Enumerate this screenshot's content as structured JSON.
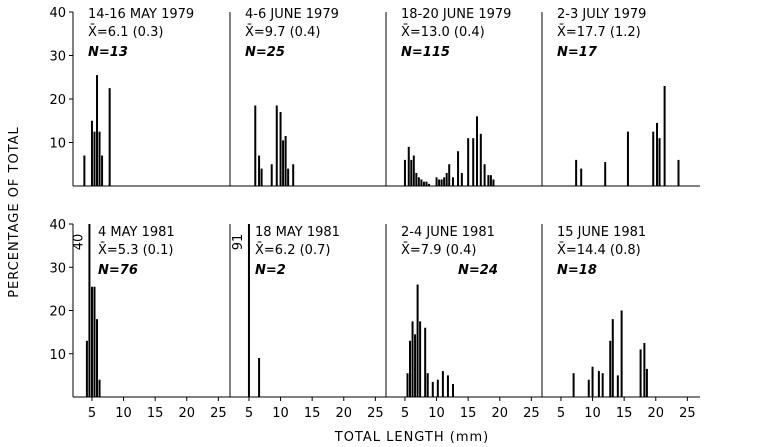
{
  "figure": {
    "ylabel": "PERCENTAGE OF TOTAL",
    "xlabel": "TOTAL LENGTH (mm)"
  },
  "chart_data": [
    {
      "type": "bar",
      "row": 0,
      "col": 0,
      "title": "14-16 MAY 1979",
      "mean_label": "X̄=6.1 (0.3)",
      "n_label": "N=13",
      "ylim": [
        0,
        40
      ],
      "xlim": [
        2,
        27
      ],
      "yticks": [
        10,
        20,
        30,
        40
      ],
      "xticks": [],
      "x": [
        3.8,
        5.0,
        5.4,
        5.8,
        6.2,
        6.6,
        7.8
      ],
      "y": [
        7,
        15,
        12.5,
        25.5,
        12.5,
        7,
        22.5
      ],
      "overflow_label": ""
    },
    {
      "type": "bar",
      "row": 0,
      "col": 1,
      "title": "4-6 JUNE 1979",
      "mean_label": "X̄=9.7 (0.4)",
      "n_label": "N=25",
      "ylim": [
        0,
        40
      ],
      "xlim": [
        2,
        27
      ],
      "yticks": [],
      "xticks": [],
      "x": [
        6.0,
        6.6,
        7.0,
        8.6,
        9.4,
        10.0,
        10.4,
        10.8,
        11.2,
        12.0
      ],
      "y": [
        18.5,
        7,
        4,
        5,
        18.5,
        17,
        10.5,
        11.5,
        4,
        5
      ],
      "overflow_label": ""
    },
    {
      "type": "bar",
      "row": 0,
      "col": 2,
      "title": "18-20 JUNE 1979",
      "mean_label": "X̄=13.0 (0.4)",
      "n_label": "N=115",
      "ylim": [
        0,
        40
      ],
      "xlim": [
        2,
        27
      ],
      "yticks": [],
      "xticks": [],
      "x": [
        5.0,
        5.6,
        6.0,
        6.4,
        6.8,
        7.2,
        7.6,
        8.0,
        8.4,
        8.8,
        10.0,
        10.4,
        10.8,
        11.2,
        11.6,
        12.0,
        12.6,
        13.4,
        14.0,
        15.0,
        15.8,
        16.4,
        17.0,
        17.6,
        18.2,
        18.6,
        19.0
      ],
      "y": [
        6,
        9,
        6,
        7,
        3,
        2,
        1.5,
        1,
        1,
        0.5,
        2,
        1.5,
        1.5,
        2,
        3,
        5,
        2,
        8,
        3,
        11,
        11,
        16,
        12,
        5,
        2.5,
        2.5,
        1.5
      ],
      "overflow_label": ""
    },
    {
      "type": "bar",
      "row": 0,
      "col": 3,
      "title": "2-3 JULY 1979",
      "mean_label": "X̄=17.7 (1.2)",
      "n_label": "N=17",
      "ylim": [
        0,
        40
      ],
      "xlim": [
        2,
        27
      ],
      "yticks": [],
      "xticks": [],
      "x": [
        7.4,
        8.2,
        12.0,
        15.6,
        19.6,
        20.2,
        20.6,
        21.4,
        23.6
      ],
      "y": [
        6,
        4,
        5.5,
        12.5,
        12.5,
        14.5,
        11,
        23,
        6
      ],
      "overflow_label": ""
    },
    {
      "type": "bar",
      "row": 1,
      "col": 0,
      "title": "4 MAY 1981",
      "mean_label": "X̄=5.3 (0.1)",
      "n_label": "N=76",
      "ylim": [
        0,
        40
      ],
      "xlim": [
        2,
        27
      ],
      "yticks": [
        10,
        20,
        30,
        40
      ],
      "xticks": [
        5,
        10,
        15,
        20,
        25
      ],
      "x": [
        4.2,
        4.6,
        5.0,
        5.4,
        5.8,
        6.2
      ],
      "y": [
        13,
        40,
        25.5,
        25.5,
        18,
        4
      ],
      "overflow_label": "40"
    },
    {
      "type": "bar",
      "row": 1,
      "col": 1,
      "title": "18 MAY 1981",
      "mean_label": "X̄=6.2 (0.7)",
      "n_label": "N=2",
      "ylim": [
        0,
        40
      ],
      "xlim": [
        2,
        27
      ],
      "yticks": [],
      "xticks": [
        5,
        10,
        15,
        20,
        25
      ],
      "x": [
        5.0,
        6.6
      ],
      "y": [
        40,
        9
      ],
      "overflow_label": "91"
    },
    {
      "type": "bar",
      "row": 1,
      "col": 2,
      "title": "2-4 JUNE 1981",
      "mean_label": "X̄=7.9 (0.4)",
      "n_label": "N=24",
      "ylim": [
        0,
        40
      ],
      "xlim": [
        2,
        27
      ],
      "yticks": [],
      "xticks": [
        5,
        10,
        15,
        20,
        25
      ],
      "x": [
        5.4,
        5.8,
        6.2,
        6.6,
        7.0,
        7.4,
        8.2,
        8.6,
        9.4,
        10.2,
        11.0,
        11.8,
        12.6
      ],
      "y": [
        5.5,
        13,
        17.5,
        14.5,
        26,
        17.5,
        16,
        5.5,
        3.5,
        4,
        6,
        5,
        3
      ],
      "overflow_label": ""
    },
    {
      "type": "bar",
      "row": 1,
      "col": 3,
      "title": "15 JUNE 1981",
      "mean_label": "X̄=14.4 (0.8)",
      "n_label": "N=18",
      "ylim": [
        0,
        40
      ],
      "xlim": [
        2,
        27
      ],
      "yticks": [],
      "xticks": [
        5,
        10,
        15,
        20,
        25
      ],
      "x": [
        7.0,
        9.4,
        10.0,
        11.0,
        11.6,
        12.8,
        13.2,
        14.0,
        14.6,
        17.6,
        18.2,
        18.6
      ],
      "y": [
        5.5,
        4,
        7,
        6,
        5.5,
        13,
        18,
        5,
        20,
        11,
        12.5,
        6.5
      ],
      "overflow_label": ""
    }
  ]
}
